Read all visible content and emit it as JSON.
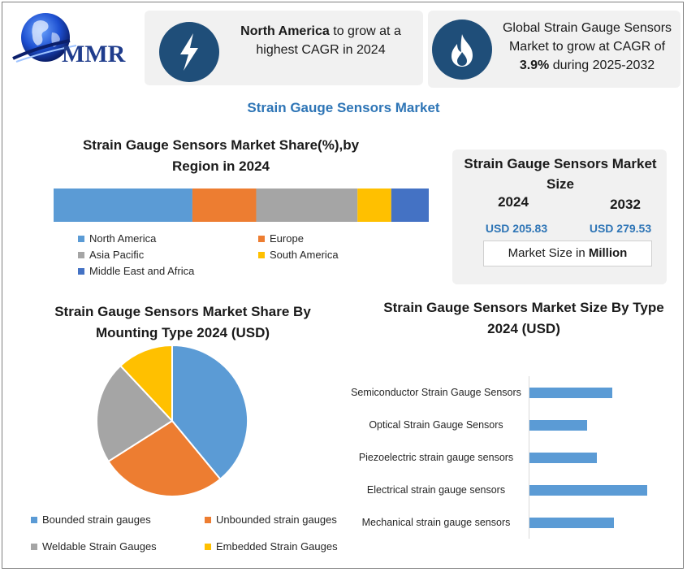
{
  "brand": {
    "logo_text": "MMR"
  },
  "highlights": [
    {
      "bold": "North America",
      "text": " to grow at a highest CAGR in 2024",
      "icon": "lightning-bolt-icon"
    },
    {
      "text": "Global Strain Gauge Sensors Market to grow at CAGR of ",
      "bold": "3.9%",
      "text_after": " during 2025-2032",
      "icon": "flame-icon"
    }
  ],
  "page_title": "Strain Gauge Sensors Market",
  "colors": {
    "accent_blue": "#5b9bd5",
    "orange": "#ed7d31",
    "gray": "#a5a5a5",
    "yellow": "#ffc000",
    "dark_blue": "#4472c4",
    "navy": "#1f4e79",
    "title_blue": "#2e75b6"
  },
  "market_size": {
    "title": "Strain Gauge Sensors Market Size",
    "year_2024": "2024",
    "year_2032": "2032",
    "value_2024": "USD 205.83",
    "value_2032": "USD 279.53",
    "unit_prefix": "Market Size in ",
    "unit_bold": "Million"
  },
  "chart_data": [
    {
      "type": "bar",
      "title": "Strain Gauge Sensors Market Share(%),by Region in 2024",
      "orientation": "horizontal-stacked",
      "series": [
        {
          "name": "North America",
          "value": 37,
          "color": "#5b9bd5"
        },
        {
          "name": "Europe",
          "value": 17,
          "color": "#ed7d31"
        },
        {
          "name": "Asia Pacific",
          "value": 27,
          "color": "#a5a5a5"
        },
        {
          "name": "South America",
          "value": 9,
          "color": "#ffc000"
        },
        {
          "name": "Middle East and Africa",
          "value": 10,
          "color": "#4472c4"
        }
      ],
      "legend": "bottom"
    },
    {
      "type": "pie",
      "title": "Strain Gauge Sensors Market Share By Mounting Type 2024  (USD)",
      "slices": [
        {
          "name": "Bounded strain gauges",
          "value": 39,
          "color": "#5b9bd5"
        },
        {
          "name": "Unbounded strain gauges",
          "value": 27,
          "color": "#ed7d31"
        },
        {
          "name": "Weldable Strain Gauges",
          "value": 22,
          "color": "#a5a5a5"
        },
        {
          "name": "Embedded Strain Gauges",
          "value": 12,
          "color": "#ffc000"
        }
      ],
      "legend": "bottom"
    },
    {
      "type": "bar",
      "title": "Strain Gauge Sensors Market Size By Type 2024  (USD)",
      "orientation": "horizontal",
      "categories": [
        "Semiconductor Strain Gauge Sensors",
        "Optical Strain Gauge Sensors",
        "Piezoelectric strain gauge sensors",
        "Electrical strain gauge sensors",
        "Mechanical strain gauge sensors"
      ],
      "values": [
        70,
        49,
        57,
        100,
        72
      ],
      "color": "#5b9bd5",
      "xlim": [
        0,
        100
      ],
      "grid": false
    }
  ]
}
